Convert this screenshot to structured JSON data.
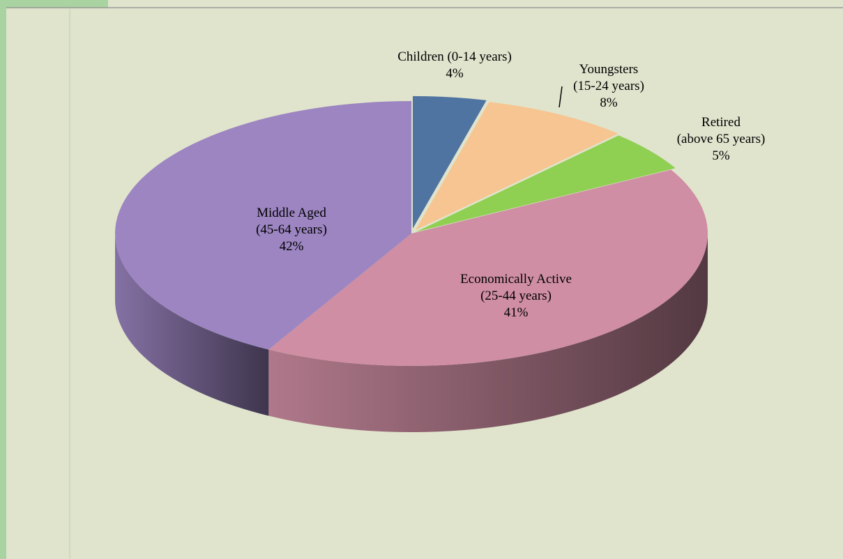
{
  "chart_data": {
    "type": "pie",
    "categories": [
      "Children (0-14 years)",
      "Youngsters (15-24 years)",
      "Retired (above 65 years)",
      "Economically Active (25-44 years)",
      "Middle Aged (45-64 years)"
    ],
    "values": [
      4,
      8,
      5,
      41,
      42
    ],
    "value_labels": [
      "4%",
      "8%",
      "5%",
      "41%",
      "42%"
    ],
    "colors": [
      "#4f74a2",
      "#f6c591",
      "#8fcf52",
      "#cf8ea3",
      "#9c85c1"
    ]
  }
}
